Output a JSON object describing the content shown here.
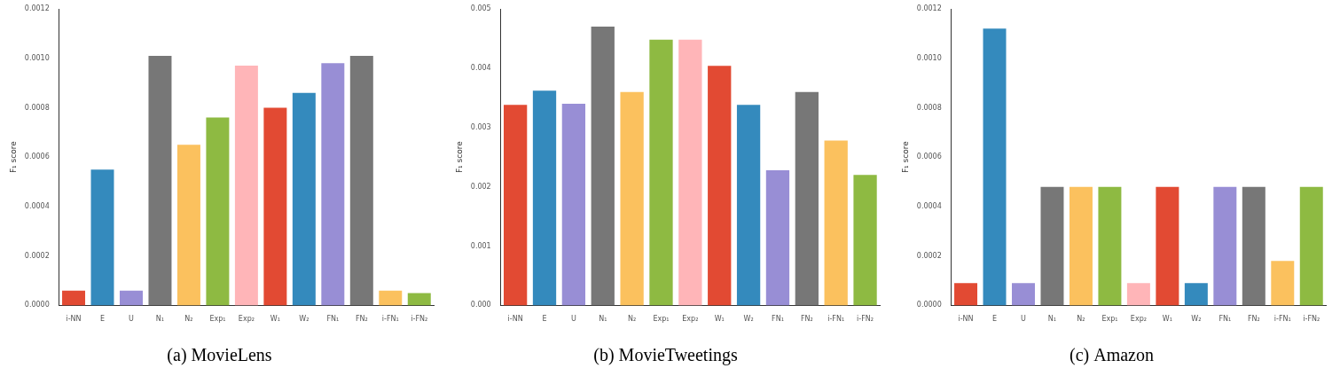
{
  "chart_data": [
    {
      "type": "bar",
      "title": "(a) MovieLens",
      "y_label": "F₁ score",
      "categories": [
        "i-NN",
        "E",
        "U",
        "N₁",
        "N₂",
        "Exp₁",
        "Exp₂",
        "W₁",
        "W₂",
        "FN₁",
        "FN₂",
        "i-FN₁",
        "i-FN₂"
      ],
      "values": [
        6e-05,
        0.00055,
        6e-05,
        0.00101,
        0.00065,
        0.00076,
        0.00097,
        0.0008,
        0.00086,
        0.00098,
        0.00101,
        6e-05,
        5e-05
      ],
      "colors": [
        "#E24A33",
        "#348ABD",
        "#988ED5",
        "#777777",
        "#FBC15E",
        "#8EBA42",
        "#FFB5B8",
        "#E24A33",
        "#348ABD",
        "#988ED5",
        "#777777",
        "#FBC15E",
        "#8EBA42"
      ],
      "ylim": [
        0,
        0.0012
      ],
      "yticks": [
        {
          "value": 0,
          "label": "0.0000"
        },
        {
          "value": 0.0002,
          "label": "0.0002"
        },
        {
          "value": 0.0004,
          "label": "0.0004"
        },
        {
          "value": 0.0006,
          "label": "0.0006"
        },
        {
          "value": 0.0008,
          "label": "0.0008"
        },
        {
          "value": 0.001,
          "label": "0.0010"
        },
        {
          "value": 0.0012,
          "label": "0.0012"
        }
      ],
      "grid": false
    },
    {
      "type": "bar",
      "title": "(b) MovieTweetings",
      "y_label": "F₁ score",
      "categories": [
        "i-NN",
        "E",
        "U",
        "N₁",
        "N₂",
        "Exp₁",
        "Exp₂",
        "W₁",
        "W₂",
        "FN₁",
        "FN₂",
        "i-FN₁",
        "i-FN₂"
      ],
      "values": [
        0.00338,
        0.00362,
        0.0034,
        0.0047,
        0.0036,
        0.00448,
        0.00448,
        0.00404,
        0.00338,
        0.00228,
        0.0036,
        0.00278,
        0.0022
      ],
      "colors": [
        "#E24A33",
        "#348ABD",
        "#988ED5",
        "#777777",
        "#FBC15E",
        "#8EBA42",
        "#FFB5B8",
        "#E24A33",
        "#348ABD",
        "#988ED5",
        "#777777",
        "#FBC15E",
        "#8EBA42"
      ],
      "ylim": [
        0,
        0.005
      ],
      "yticks": [
        {
          "value": 0,
          "label": "0.000"
        },
        {
          "value": 0.001,
          "label": "0.001"
        },
        {
          "value": 0.002,
          "label": "0.002"
        },
        {
          "value": 0.003,
          "label": "0.003"
        },
        {
          "value": 0.004,
          "label": "0.004"
        },
        {
          "value": 0.005,
          "label": "0.005"
        }
      ],
      "grid": false
    },
    {
      "type": "bar",
      "title": "(c) Amazon",
      "y_label": "F₁ score",
      "categories": [
        "i-NN",
        "E",
        "U",
        "N₁",
        "N₂",
        "Exp₁",
        "Exp₂",
        "W₁",
        "W₂",
        "FN₁",
        "FN₂",
        "i-FN₁",
        "i-FN₂"
      ],
      "values": [
        9e-05,
        0.00112,
        9e-05,
        0.00048,
        0.00048,
        0.00048,
        9e-05,
        0.00048,
        9e-05,
        0.00048,
        0.00048,
        0.00018,
        0.00048
      ],
      "colors": [
        "#E24A33",
        "#348ABD",
        "#988ED5",
        "#777777",
        "#FBC15E",
        "#8EBA42",
        "#FFB5B8",
        "#E24A33",
        "#348ABD",
        "#988ED5",
        "#777777",
        "#FBC15E",
        "#8EBA42"
      ],
      "ylim": [
        0,
        0.0012
      ],
      "yticks": [
        {
          "value": 0,
          "label": "0.0000"
        },
        {
          "value": 0.0002,
          "label": "0.0002"
        },
        {
          "value": 0.0004,
          "label": "0.0004"
        },
        {
          "value": 0.0006,
          "label": "0.0006"
        },
        {
          "value": 0.0008,
          "label": "0.0008"
        },
        {
          "value": 0.001,
          "label": "0.0010"
        },
        {
          "value": 0.0012,
          "label": "0.0012"
        }
      ],
      "grid": false
    }
  ]
}
